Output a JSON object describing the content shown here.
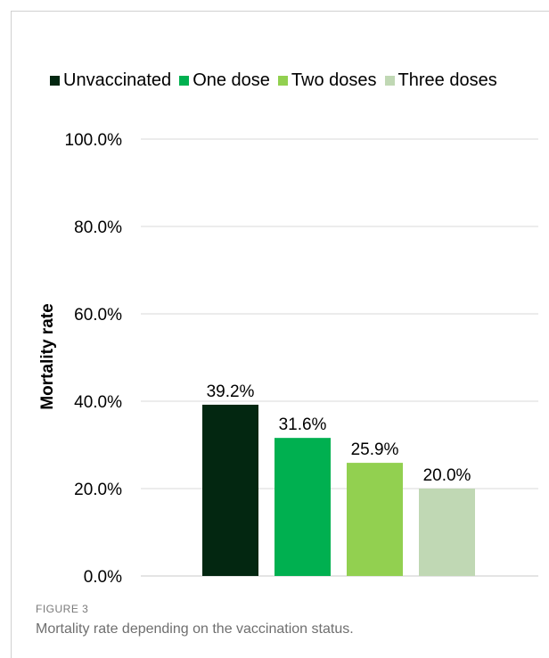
{
  "figure": {
    "label": "FIGURE 3",
    "caption": "Mortality rate depending on the vaccination status."
  },
  "chart_data": {
    "type": "bar",
    "title": "",
    "xlabel": "",
    "ylabel": "Mortality rate",
    "ylim": [
      0,
      100
    ],
    "yticks": [
      "0.0%",
      "20.0%",
      "40.0%",
      "60.0%",
      "80.0%",
      "100.0%"
    ],
    "ytick_values": [
      0,
      20,
      40,
      60,
      80,
      100
    ],
    "grid": true,
    "legend_position": "top",
    "series": [
      {
        "name": "Unvaccinated",
        "value": 39.2,
        "label": "39.2%",
        "color": "#032711"
      },
      {
        "name": "One dose",
        "value": 31.6,
        "label": "31.6%",
        "color": "#00b050"
      },
      {
        "name": "Two doses",
        "value": 25.9,
        "label": "25.9%",
        "color": "#92d050"
      },
      {
        "name": "Three doses",
        "value": 20.0,
        "label": "20.0%",
        "color": "#c0d8b4"
      }
    ]
  }
}
